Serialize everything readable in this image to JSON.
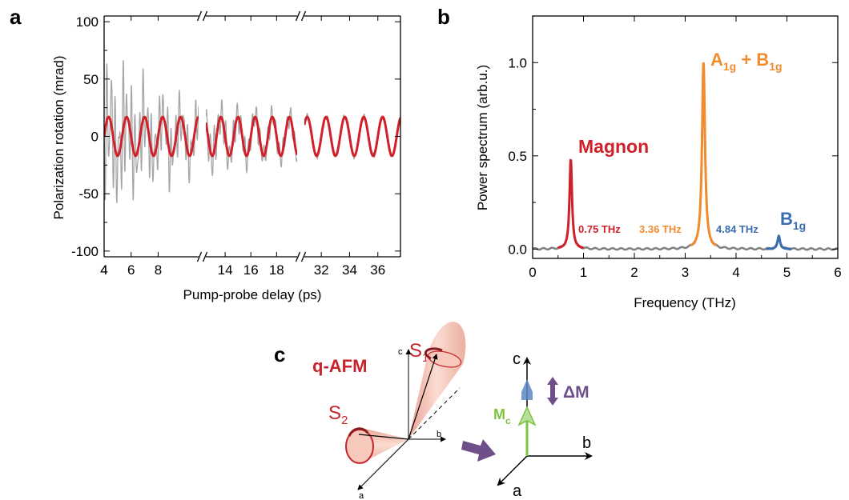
{
  "panels": {
    "a": {
      "letter": "a"
    },
    "b": {
      "letter": "b"
    },
    "c": {
      "letter": "c"
    }
  },
  "chart_data": [
    {
      "panel": "a",
      "type": "line",
      "xlabel": "Pump-probe delay (ps)",
      "ylabel": "Polarization rotation (mrad)",
      "ylim": [
        -105,
        105
      ],
      "yticks": [
        "100",
        "50",
        "0",
        "-50",
        "-100"
      ],
      "segments": [
        {
          "xlim": [
            4,
            11
          ],
          "xticks": [
            "4",
            "6",
            "8"
          ]
        },
        {
          "xlim": [
            12.5,
            19.6
          ],
          "xticks": [
            "14",
            "16",
            "18"
          ]
        },
        {
          "xlim": [
            30.8,
            37.6
          ],
          "xticks": [
            "32",
            "34",
            "36"
          ]
        }
      ],
      "series": [
        {
          "role": "data",
          "color": "#a6a6a6",
          "description_values": {
            "peak_max": 98,
            "peak_min": -82,
            "late_amplitude": 16
          }
        },
        {
          "role": "fit",
          "color": "#d0202a",
          "amplitude": 17,
          "frequency_thz": 0.75
        }
      ]
    },
    {
      "panel": "b",
      "type": "line",
      "xlabel": "Frequency (THz)",
      "ylabel": "Power spectrum (arb.u.)",
      "xlim": [
        0,
        6
      ],
      "ylim": [
        -0.05,
        1.25
      ],
      "xticks": [
        "0",
        "1",
        "2",
        "3",
        "4",
        "5",
        "6"
      ],
      "yticks": [
        "0.0",
        "0.5",
        "1.0"
      ],
      "series": [
        {
          "color": "#808080",
          "baseline": 0.0
        }
      ],
      "peaks": [
        {
          "x": 0.75,
          "y": 0.48,
          "color": "#d0202a"
        },
        {
          "x": 3.36,
          "y": 1.0,
          "color": "#f28a2e"
        },
        {
          "x": 4.84,
          "y": 0.07,
          "color": "#3a6db0"
        }
      ],
      "annotations": {
        "magnon": "Magnon",
        "a1g_b1g": {
          "A": "A",
          "sub1": "1g",
          "plus": " + B",
          "sub2": "1g"
        },
        "b1g": {
          "B": "B",
          "sub": "1g"
        },
        "freq_magnon": "0.75 THz",
        "freq_a1g": "3.36 THz",
        "freq_b1g": "4.84 THz"
      }
    }
  ],
  "schematic": {
    "phase_label": "q-AFM",
    "s1": {
      "S": "S",
      "sub": "1"
    },
    "s2": {
      "S": "S",
      "sub": "2"
    },
    "left_axes": {
      "c": "c",
      "b": "b",
      "a": "a"
    },
    "right_axes": {
      "c": "c",
      "b": "b",
      "a": "a"
    },
    "mc": {
      "M": "M",
      "sub": "c"
    },
    "delta_m": "ΔM",
    "colors": {
      "red": "#c8232c",
      "green": "#7dc242",
      "purple": "#6e4f8a",
      "blue": "#5b87c5",
      "cone": "#f2b8a8"
    }
  }
}
